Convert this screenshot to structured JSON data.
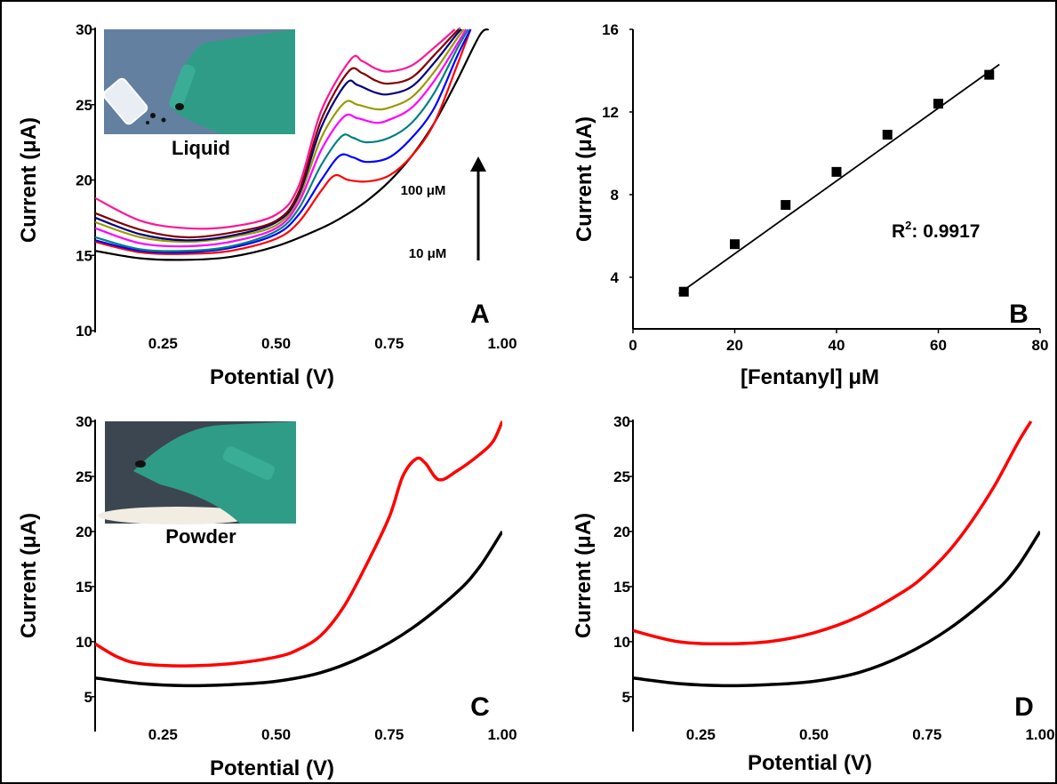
{
  "figure": {
    "panels": {
      "A": {
        "label": "A",
        "inset_label": "Liquid",
        "conc_high": "100 μM",
        "conc_low": "10 μM"
      },
      "B": {
        "label": "B",
        "r2_prefix": "R",
        "r2_sup": "2",
        "r2_value": ": 0.9917"
      },
      "C": {
        "label": "C",
        "inset_label": "Powder"
      },
      "D": {
        "label": "D"
      }
    }
  },
  "chart_data": [
    {
      "panel": "A",
      "type": "line",
      "xlabel": "Potential (V)",
      "ylabel": "Current (μA)",
      "xlim": [
        0.1,
        1.0
      ],
      "ylim": [
        10,
        30
      ],
      "xticks": [
        "0.25",
        "0.50",
        "0.75",
        "1.00"
      ],
      "yticks": [
        "10",
        "15",
        "20",
        "25",
        "30"
      ],
      "series": [
        {
          "color": "#000000",
          "x": [
            0.1,
            0.2,
            0.3,
            0.4,
            0.5,
            0.6,
            0.65,
            0.7,
            0.75,
            0.8,
            0.85,
            0.9,
            0.95,
            0.97
          ],
          "y": [
            15.3,
            14.8,
            14.7,
            14.9,
            15.6,
            16.8,
            17.6,
            18.6,
            19.9,
            21.6,
            23.8,
            26.6,
            29.6,
            30.0
          ]
        },
        {
          "color": "#ff0000",
          "x": [
            0.1,
            0.2,
            0.3,
            0.4,
            0.5,
            0.55,
            0.6,
            0.63,
            0.66,
            0.7,
            0.75,
            0.8,
            0.85,
            0.9,
            0.93
          ],
          "y": [
            15.9,
            15.2,
            15.1,
            15.3,
            16.1,
            17.2,
            19.3,
            20.3,
            20.0,
            19.9,
            20.3,
            21.6,
            23.8,
            27.6,
            30.0
          ]
        },
        {
          "color": "#0000ff",
          "x": [
            0.1,
            0.2,
            0.3,
            0.4,
            0.5,
            0.55,
            0.6,
            0.64,
            0.67,
            0.7,
            0.75,
            0.8,
            0.85,
            0.9,
            0.93
          ],
          "y": [
            16.0,
            15.3,
            15.2,
            15.5,
            16.4,
            17.7,
            20.0,
            21.6,
            21.5,
            21.2,
            21.5,
            22.8,
            24.8,
            28.2,
            30.0
          ]
        },
        {
          "color": "#008080",
          "x": [
            0.1,
            0.2,
            0.3,
            0.4,
            0.5,
            0.55,
            0.6,
            0.645,
            0.67,
            0.7,
            0.75,
            0.8,
            0.85,
            0.9,
            0.925
          ],
          "y": [
            16.2,
            15.4,
            15.3,
            15.6,
            16.6,
            18.1,
            21.0,
            22.9,
            22.8,
            22.5,
            22.8,
            23.8,
            25.8,
            28.7,
            30.0
          ]
        },
        {
          "color": "#ff00ff",
          "x": [
            0.1,
            0.2,
            0.3,
            0.4,
            0.5,
            0.55,
            0.6,
            0.65,
            0.68,
            0.72,
            0.75,
            0.8,
            0.85,
            0.9,
            0.92
          ],
          "y": [
            16.8,
            15.8,
            15.6,
            15.9,
            16.8,
            18.5,
            22.0,
            24.2,
            24.1,
            23.8,
            24.0,
            24.8,
            26.6,
            29.0,
            30.0
          ]
        },
        {
          "color": "#999900",
          "x": [
            0.1,
            0.2,
            0.3,
            0.4,
            0.5,
            0.55,
            0.6,
            0.65,
            0.68,
            0.72,
            0.75,
            0.8,
            0.85,
            0.9,
            0.915
          ],
          "y": [
            17.2,
            16.2,
            15.9,
            16.2,
            17.0,
            18.8,
            22.8,
            25.1,
            25.0,
            24.7,
            24.8,
            25.5,
            27.2,
            29.4,
            30.0
          ]
        },
        {
          "color": "#000080",
          "x": [
            0.1,
            0.2,
            0.3,
            0.4,
            0.5,
            0.55,
            0.6,
            0.655,
            0.68,
            0.72,
            0.75,
            0.8,
            0.85,
            0.9,
            0.91
          ],
          "y": [
            17.5,
            16.4,
            16.0,
            16.3,
            17.2,
            19.0,
            23.5,
            26.4,
            26.3,
            25.8,
            25.7,
            26.2,
            27.8,
            29.7,
            30.0
          ]
        },
        {
          "color": "#800000",
          "x": [
            0.1,
            0.2,
            0.3,
            0.4,
            0.5,
            0.55,
            0.6,
            0.66,
            0.69,
            0.72,
            0.75,
            0.8,
            0.85,
            0.9,
            0.905
          ],
          "y": [
            17.8,
            16.7,
            16.2,
            16.5,
            17.3,
            19.2,
            24.0,
            27.2,
            27.1,
            26.6,
            26.4,
            26.8,
            28.3,
            29.9,
            30.0
          ]
        },
        {
          "color": "#ff1493",
          "x": [
            0.1,
            0.2,
            0.3,
            0.4,
            0.5,
            0.55,
            0.6,
            0.665,
            0.69,
            0.72,
            0.75,
            0.8,
            0.85,
            0.895
          ],
          "y": [
            18.8,
            17.3,
            16.8,
            16.9,
            17.7,
            19.6,
            24.6,
            28.0,
            27.9,
            27.4,
            27.2,
            27.6,
            28.8,
            30.0
          ]
        }
      ]
    },
    {
      "panel": "B",
      "type": "scatter",
      "xlabel": "[Fentanyl] μM",
      "ylabel": "Current (μA)",
      "xlim": [
        0,
        80
      ],
      "ylim": [
        1.5,
        16
      ],
      "xticks": [
        "0",
        "20",
        "40",
        "60",
        "80"
      ],
      "yticks": [
        "4",
        "8",
        "12",
        "16"
      ],
      "points": {
        "x": [
          10,
          20,
          30,
          40,
          50,
          60,
          70
        ],
        "y": [
          3.3,
          5.6,
          7.5,
          9.1,
          10.9,
          12.4,
          13.8
        ]
      },
      "fit": {
        "x": [
          9,
          72
        ],
        "y": [
          3.2,
          14.3
        ]
      },
      "annotation": "R2: 0.9917"
    },
    {
      "panel": "C",
      "type": "line",
      "xlabel": "Potential (V)",
      "ylabel": "Current (μA)",
      "xlim": [
        0.1,
        1.0
      ],
      "ylim": [
        2,
        30
      ],
      "xticks": [
        "0.25",
        "0.50",
        "0.75",
        "1.00"
      ],
      "yticks": [
        "5",
        "10",
        "15",
        "20",
        "25",
        "30"
      ],
      "series": [
        {
          "color": "#000000",
          "x": [
            0.1,
            0.2,
            0.3,
            0.4,
            0.5,
            0.6,
            0.7,
            0.8,
            0.9,
            0.95,
            1.0
          ],
          "y": [
            6.7,
            6.2,
            6.0,
            6.1,
            6.4,
            7.2,
            8.8,
            11.2,
            14.5,
            16.8,
            20.0
          ]
        },
        {
          "color": "#ff0000",
          "x": [
            0.1,
            0.15,
            0.2,
            0.3,
            0.4,
            0.5,
            0.55,
            0.6,
            0.65,
            0.7,
            0.75,
            0.78,
            0.81,
            0.83,
            0.86,
            0.9,
            0.95,
            0.98,
            1.0
          ],
          "y": [
            9.8,
            8.6,
            8.0,
            7.8,
            8.0,
            8.6,
            9.3,
            10.6,
            13.2,
            17.0,
            21.3,
            25.0,
            26.6,
            26.2,
            24.7,
            25.5,
            27.0,
            28.2,
            30.0
          ]
        }
      ]
    },
    {
      "panel": "D",
      "type": "line",
      "xlabel": "Potential (V)",
      "ylabel": "Current (μA)",
      "xlim": [
        0.1,
        1.0
      ],
      "ylim": [
        2,
        30
      ],
      "xticks": [
        "0.25",
        "0.50",
        "0.75",
        "1.00"
      ],
      "yticks": [
        "5",
        "10",
        "15",
        "20",
        "25",
        "30"
      ],
      "series": [
        {
          "color": "#000000",
          "x": [
            0.1,
            0.2,
            0.3,
            0.4,
            0.5,
            0.6,
            0.7,
            0.8,
            0.9,
            0.95,
            1.0
          ],
          "y": [
            6.7,
            6.2,
            6.0,
            6.1,
            6.4,
            7.2,
            8.8,
            11.2,
            14.5,
            16.8,
            20.0
          ]
        },
        {
          "color": "#ff0000",
          "x": [
            0.1,
            0.2,
            0.3,
            0.4,
            0.5,
            0.6,
            0.7,
            0.75,
            0.8,
            0.85,
            0.9,
            0.95,
            0.98
          ],
          "y": [
            11.0,
            10.0,
            9.8,
            10.0,
            10.8,
            12.3,
            14.6,
            16.2,
            18.3,
            21.0,
            24.2,
            28.0,
            30.0
          ]
        }
      ]
    }
  ]
}
